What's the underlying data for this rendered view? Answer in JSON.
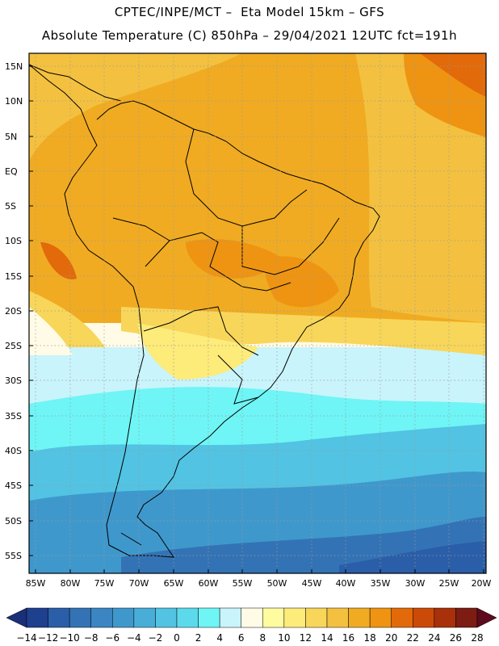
{
  "header": {
    "line1": "CPTEC/INPE/MCT –  Eta Model 15km – GFS",
    "line2": "Absolute Temperature (C) 850hPa – 29/04/2021 12UTC fct=191h"
  },
  "lat_labels": [
    "15N",
    "10N",
    "5N",
    "EQ",
    "5S",
    "10S",
    "15S",
    "20S",
    "25S",
    "30S",
    "35S",
    "40S",
    "45S",
    "50S",
    "55S"
  ],
  "lon_labels": [
    "85W",
    "80W",
    "75W",
    "70W",
    "65W",
    "60W",
    "55W",
    "50W",
    "45W",
    "40W",
    "35W",
    "30W",
    "25W",
    "20W"
  ],
  "colorbar": {
    "labels": [
      "-14",
      "-12",
      "-10",
      "-8",
      "-6",
      "-4",
      "-2",
      "0",
      "2",
      "4",
      "6",
      "8",
      "10",
      "12",
      "14",
      "16",
      "18",
      "20",
      "22",
      "24",
      "26",
      "28"
    ],
    "colors": [
      "#1f3f8f",
      "#2a5ea8",
      "#3373b5",
      "#3b86c2",
      "#3f98cc",
      "#48aed8",
      "#52c3e3",
      "#5cdaec",
      "#6ff5f5",
      "#c9f4fb",
      "#fffbe6",
      "#fffca0",
      "#fdeb7a",
      "#f8d65a",
      "#f3c13f",
      "#f0ab22",
      "#ee9412",
      "#e26a0a",
      "#cc4a08",
      "#a8300a",
      "#7c1c12"
    ],
    "min_arrow_color": "#1b2f78",
    "max_arrow_color": "#5c0a1c"
  }
}
